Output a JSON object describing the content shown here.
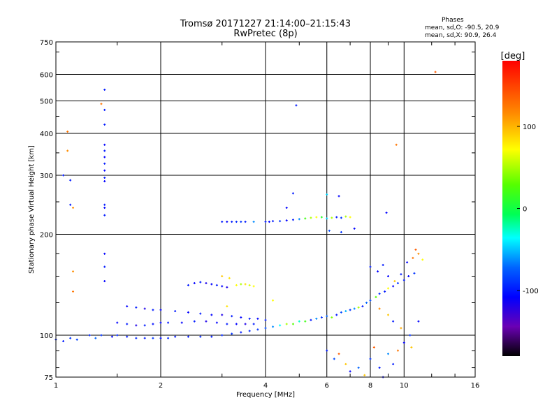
{
  "chart_data": {
    "type": "scatter",
    "title": "Tromsø 20171227 21:14:00–21:15:43",
    "subtitle": "RwPretec (8p)",
    "xlabel": "Frequency [MHz]",
    "ylabel": "Stationary phase Virtual Height [km]",
    "x_scale": "log",
    "y_scale": "log",
    "xlim": [
      1,
      16
    ],
    "ylim": [
      75,
      750
    ],
    "x_ticks": [
      1,
      2,
      4,
      6,
      8,
      10,
      16
    ],
    "y_ticks": [
      75,
      100,
      200,
      300,
      400,
      500,
      600,
      750
    ],
    "grid": true,
    "colorbar": {
      "label": "[deg]",
      "range": [
        -180,
        180
      ],
      "ticks": [
        100,
        0,
        -100
      ]
    },
    "stats": {
      "header": "Phases",
      "o_mode": "mean, sd,O: -90.5, 20.9",
      "x_mode": "mean, sd,X: 90.9, 26.4"
    },
    "series": [
      {
        "points": [
          [
            1.0,
            97,
            -95
          ],
          [
            1.05,
            96,
            -100
          ],
          [
            1.1,
            98,
            -90
          ],
          [
            1.15,
            97,
            -85
          ],
          [
            1.25,
            100,
            -95
          ],
          [
            1.3,
            98,
            -70
          ],
          [
            1.35,
            100,
            -90
          ],
          [
            1.45,
            99,
            -110
          ],
          [
            1.5,
            100,
            -95
          ],
          [
            1.6,
            99,
            -100
          ],
          [
            1.7,
            98,
            -95
          ],
          [
            1.8,
            98,
            -100
          ],
          [
            1.9,
            98,
            -90
          ],
          [
            2.0,
            98,
            -105
          ],
          [
            2.1,
            98,
            -95
          ],
          [
            2.2,
            99,
            -100
          ],
          [
            2.4,
            99,
            -100
          ],
          [
            2.6,
            99,
            -95
          ],
          [
            2.8,
            99,
            -100
          ],
          [
            3.0,
            100,
            -95
          ],
          [
            3.2,
            101,
            -90
          ],
          [
            3.4,
            102,
            -100
          ],
          [
            3.6,
            103,
            -95
          ],
          [
            3.8,
            104,
            -90
          ],
          [
            4.0,
            105,
            -80
          ],
          [
            4.2,
            106,
            -60
          ],
          [
            4.4,
            107,
            -30
          ],
          [
            4.6,
            108,
            60
          ],
          [
            4.8,
            108,
            40
          ],
          [
            5.0,
            110,
            -20
          ],
          [
            5.2,
            110,
            30
          ],
          [
            5.4,
            111,
            -100
          ],
          [
            5.6,
            112,
            -60
          ],
          [
            5.8,
            113,
            -90
          ],
          [
            6.0,
            114,
            -70
          ],
          [
            6.2,
            113,
            50
          ],
          [
            6.4,
            115,
            -100
          ],
          [
            6.6,
            117,
            -80
          ],
          [
            6.8,
            118,
            -50
          ],
          [
            7.0,
            119,
            -90
          ],
          [
            7.2,
            120,
            -60
          ],
          [
            7.4,
            121,
            60
          ],
          [
            7.6,
            122,
            -100
          ],
          [
            7.8,
            125,
            -70
          ],
          [
            8.0,
            127,
            -80
          ],
          [
            8.3,
            130,
            40
          ],
          [
            8.5,
            133,
            -90
          ],
          [
            8.8,
            135,
            -100
          ],
          [
            9.0,
            138,
            80
          ],
          [
            9.3,
            140,
            -110
          ],
          [
            9.6,
            143,
            -90
          ],
          [
            10.0,
            146,
            -100
          ],
          [
            10.3,
            150,
            -110
          ],
          [
            10.7,
            153,
            -90
          ],
          [
            1.5,
            109,
            -110
          ],
          [
            1.6,
            108,
            -100
          ],
          [
            1.7,
            107,
            -120
          ],
          [
            1.8,
            107,
            -100
          ],
          [
            1.9,
            108,
            -105
          ],
          [
            2.0,
            109,
            -110
          ],
          [
            2.1,
            109,
            -100
          ],
          [
            2.3,
            109,
            -110
          ],
          [
            2.5,
            110,
            -100
          ],
          [
            2.7,
            110,
            -120
          ],
          [
            2.9,
            109,
            -110
          ],
          [
            3.1,
            108,
            -100
          ],
          [
            3.3,
            108,
            -110
          ],
          [
            3.5,
            108,
            -120
          ],
          [
            3.7,
            108,
            -100
          ],
          [
            1.6,
            122,
            -110
          ],
          [
            1.7,
            121,
            -100
          ],
          [
            1.8,
            120,
            -120
          ],
          [
            1.9,
            119,
            -100
          ],
          [
            2.0,
            119,
            -110
          ],
          [
            2.2,
            118,
            -100
          ],
          [
            2.4,
            117,
            -110
          ],
          [
            2.6,
            116,
            -100
          ],
          [
            2.8,
            115,
            -110
          ],
          [
            3.0,
            115,
            -120
          ],
          [
            3.2,
            114,
            -100
          ],
          [
            3.4,
            113,
            -110
          ],
          [
            3.6,
            112,
            -100
          ],
          [
            3.8,
            112,
            -110
          ],
          [
            4.0,
            111,
            -100
          ],
          [
            2.4,
            141,
            -100
          ],
          [
            2.5,
            143,
            -110
          ],
          [
            2.6,
            144,
            -100
          ],
          [
            2.7,
            143,
            -120
          ],
          [
            2.8,
            142,
            -110
          ],
          [
            2.9,
            141,
            -100
          ],
          [
            3.0,
            140,
            -110
          ],
          [
            3.1,
            139,
            -120
          ],
          [
            3.3,
            141,
            80
          ],
          [
            3.4,
            142,
            60
          ],
          [
            3.5,
            142,
            90
          ],
          [
            3.6,
            141,
            70
          ],
          [
            3.7,
            140,
            80
          ],
          [
            3.0,
            150,
            100
          ],
          [
            3.15,
            148,
            90
          ],
          [
            3.1,
            122,
            90
          ],
          [
            4.2,
            127,
            80
          ],
          [
            3.0,
            218,
            -100
          ],
          [
            3.1,
            218,
            -110
          ],
          [
            3.2,
            218,
            -100
          ],
          [
            3.3,
            218,
            -95
          ],
          [
            3.4,
            218,
            -90
          ],
          [
            3.5,
            218,
            -100
          ],
          [
            3.7,
            218,
            -60
          ],
          [
            4.0,
            218,
            -100
          ],
          [
            4.1,
            218,
            -110
          ],
          [
            4.2,
            219,
            -100
          ],
          [
            4.4,
            219,
            -90
          ],
          [
            4.6,
            220,
            -110
          ],
          [
            4.8,
            221,
            -100
          ],
          [
            5.0,
            222,
            -60
          ],
          [
            5.2,
            223,
            30
          ],
          [
            5.4,
            224,
            60
          ],
          [
            5.6,
            225,
            80
          ],
          [
            5.8,
            225,
            20
          ],
          [
            6.0,
            223,
            -40
          ],
          [
            6.2,
            224,
            60
          ],
          [
            6.4,
            225,
            -100
          ],
          [
            6.6,
            224,
            -90
          ],
          [
            6.8,
            226,
            60
          ],
          [
            7.0,
            225,
            80
          ],
          [
            1.38,
            540,
            -100
          ],
          [
            1.38,
            470,
            -100
          ],
          [
            1.38,
            425,
            -100
          ],
          [
            1.38,
            370,
            -110
          ],
          [
            1.38,
            355,
            -100
          ],
          [
            1.38,
            340,
            -110
          ],
          [
            1.38,
            325,
            -100
          ],
          [
            1.38,
            310,
            -110
          ],
          [
            1.38,
            295,
            -100
          ],
          [
            1.38,
            288,
            -110
          ],
          [
            1.38,
            245,
            -100
          ],
          [
            1.38,
            240,
            -110
          ],
          [
            1.38,
            228,
            -100
          ],
          [
            1.38,
            175,
            -110
          ],
          [
            1.38,
            160,
            -100
          ],
          [
            1.38,
            145,
            -110
          ],
          [
            1.35,
            490,
            130
          ],
          [
            1.08,
            405,
            130
          ],
          [
            1.08,
            355,
            120
          ],
          [
            1.05,
            300,
            -100
          ],
          [
            1.1,
            290,
            -100
          ],
          [
            1.1,
            245,
            -100
          ],
          [
            1.12,
            240,
            120
          ],
          [
            1.12,
            155,
            120
          ],
          [
            1.12,
            135,
            130
          ],
          [
            4.9,
            485,
            -100
          ],
          [
            12.3,
            610,
            140
          ],
          [
            9.5,
            370,
            130
          ],
          [
            8.9,
            232,
            -110
          ],
          [
            4.6,
            240,
            -110
          ],
          [
            4.8,
            265,
            -100
          ],
          [
            6.0,
            263,
            -40
          ],
          [
            6.1,
            205,
            -80
          ],
          [
            6.6,
            203,
            -90
          ],
          [
            7.2,
            208,
            -110
          ],
          [
            6.5,
            260,
            -110
          ],
          [
            6.0,
            90,
            -100
          ],
          [
            6.3,
            85,
            -80
          ],
          [
            6.5,
            88,
            140
          ],
          [
            6.8,
            82,
            100
          ],
          [
            7.0,
            78,
            -110
          ],
          [
            7.4,
            80,
            -70
          ],
          [
            7.7,
            76,
            100
          ],
          [
            8.0,
            85,
            -90
          ],
          [
            8.2,
            92,
            140
          ],
          [
            8.5,
            80,
            -100
          ],
          [
            8.7,
            75,
            -110
          ],
          [
            9.0,
            88,
            -60
          ],
          [
            9.3,
            82,
            -100
          ],
          [
            9.6,
            90,
            130
          ],
          [
            10.0,
            95,
            -110
          ],
          [
            10.5,
            92,
            100
          ],
          [
            8.0,
            160,
            -100
          ],
          [
            8.4,
            155,
            -110
          ],
          [
            8.7,
            162,
            -100
          ],
          [
            9.0,
            150,
            -110
          ],
          [
            9.4,
            145,
            100
          ],
          [
            9.8,
            152,
            -100
          ],
          [
            10.2,
            165,
            -110
          ],
          [
            10.6,
            170,
            130
          ],
          [
            11.0,
            175,
            120
          ],
          [
            11.3,
            168,
            80
          ],
          [
            10.8,
            180,
            140
          ],
          [
            8.5,
            120,
            120
          ],
          [
            9.0,
            115,
            100
          ],
          [
            9.3,
            110,
            -100
          ],
          [
            9.8,
            105,
            110
          ],
          [
            10.4,
            100,
            -90
          ],
          [
            11.0,
            110,
            -110
          ]
        ]
      }
    ]
  }
}
